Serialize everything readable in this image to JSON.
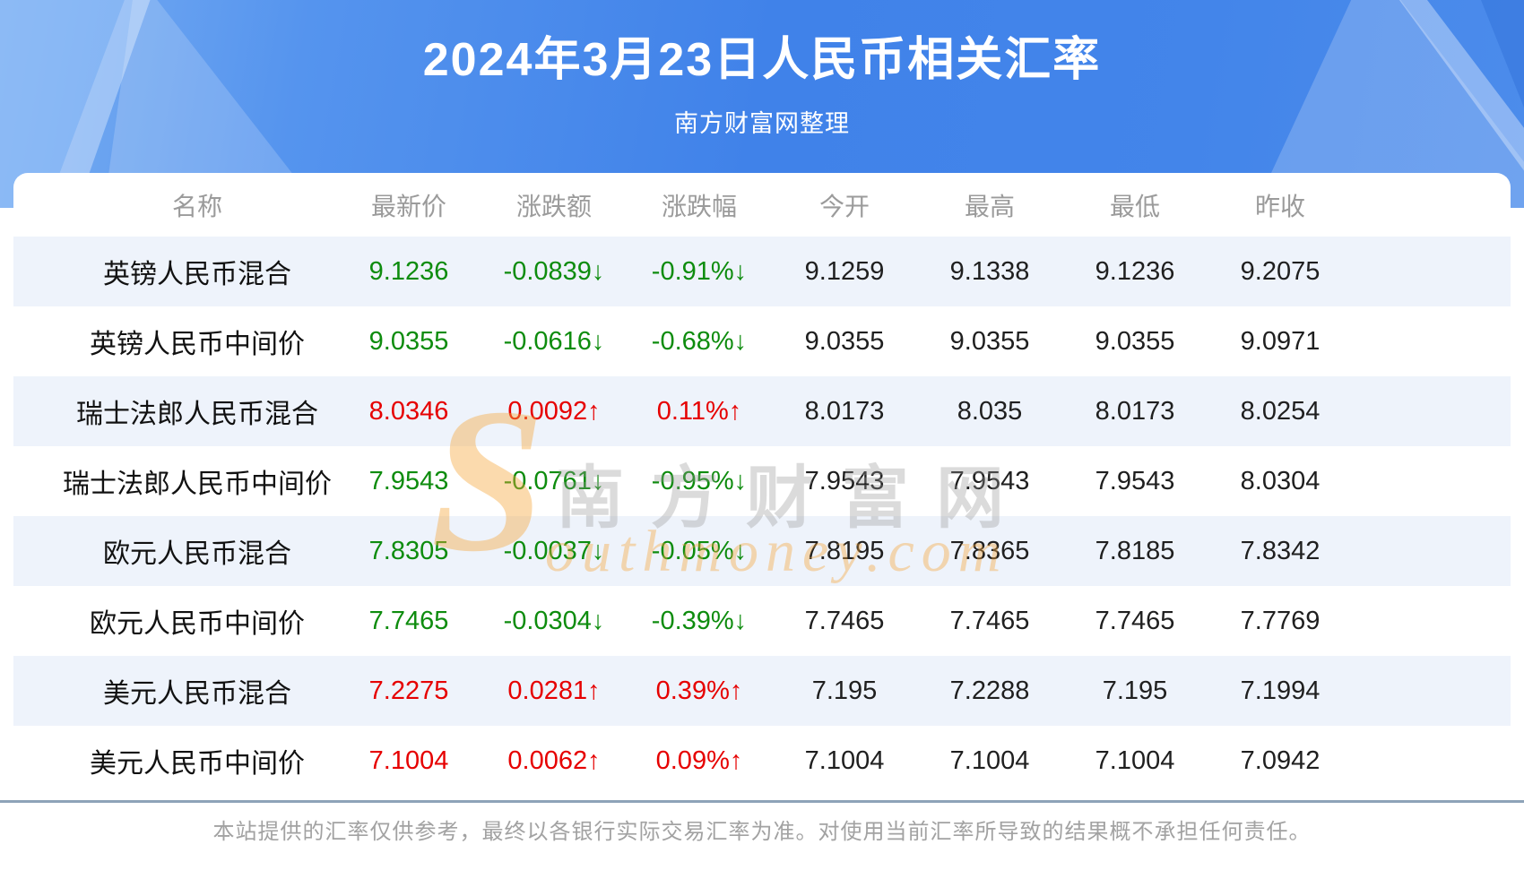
{
  "header": {
    "title": "2024年3月23日人民币相关汇率",
    "subtitle": "南方财富网整理"
  },
  "chart_data": {
    "type": "table",
    "title": "2024年3月23日人民币相关汇率",
    "columns": [
      "名称",
      "最新价",
      "涨跌额",
      "涨跌幅",
      "今开",
      "最高",
      "最低",
      "昨收"
    ],
    "rows": [
      {
        "name": "英镑人民币混合",
        "latest": "9.1236",
        "change": "-0.0839↓",
        "pct": "-0.91%↓",
        "open": "9.1259",
        "high": "9.1338",
        "low": "9.1236",
        "prev_close": "9.2075",
        "trend": "down"
      },
      {
        "name": "英镑人民币中间价",
        "latest": "9.0355",
        "change": "-0.0616↓",
        "pct": "-0.68%↓",
        "open": "9.0355",
        "high": "9.0355",
        "low": "9.0355",
        "prev_close": "9.0971",
        "trend": "down"
      },
      {
        "name": "瑞士法郎人民币混合",
        "latest": "8.0346",
        "change": "0.0092↑",
        "pct": "0.11%↑",
        "open": "8.0173",
        "high": "8.035",
        "low": "8.0173",
        "prev_close": "8.0254",
        "trend": "up"
      },
      {
        "name": "瑞士法郎人民币中间价",
        "latest": "7.9543",
        "change": "-0.0761↓",
        "pct": "-0.95%↓",
        "open": "7.9543",
        "high": "7.9543",
        "low": "7.9543",
        "prev_close": "8.0304",
        "trend": "down"
      },
      {
        "name": "欧元人民币混合",
        "latest": "7.8305",
        "change": "-0.0037↓",
        "pct": "-0.05%↓",
        "open": "7.8195",
        "high": "7.8365",
        "low": "7.8185",
        "prev_close": "7.8342",
        "trend": "down"
      },
      {
        "name": "欧元人民币中间价",
        "latest": "7.7465",
        "change": "-0.0304↓",
        "pct": "-0.39%↓",
        "open": "7.7465",
        "high": "7.7465",
        "low": "7.7465",
        "prev_close": "7.7769",
        "trend": "down"
      },
      {
        "name": "美元人民币混合",
        "latest": "7.2275",
        "change": "0.0281↑",
        "pct": "0.39%↑",
        "open": "7.195",
        "high": "7.2288",
        "low": "7.195",
        "prev_close": "7.1994",
        "trend": "up"
      },
      {
        "name": "美元人民币中间价",
        "latest": "7.1004",
        "change": "0.0062↑",
        "pct": "0.09%↑",
        "open": "7.1004",
        "high": "7.1004",
        "low": "7.1004",
        "prev_close": "7.0942",
        "trend": "up"
      }
    ]
  },
  "watermark": {
    "cn": "南方财富网",
    "en": "Southmoney.com"
  },
  "footer": {
    "disclaimer": "本站提供的汇率仅供参考，最终以各银行实际交易汇率为准。对使用当前汇率所导致的结果概不承担任何责任。"
  },
  "colors": {
    "up": "#e60000",
    "down": "#0e8c0e",
    "banner_blue": "#4082e9",
    "stripe": "#eef3fb",
    "divider": "#8ea3b8"
  }
}
